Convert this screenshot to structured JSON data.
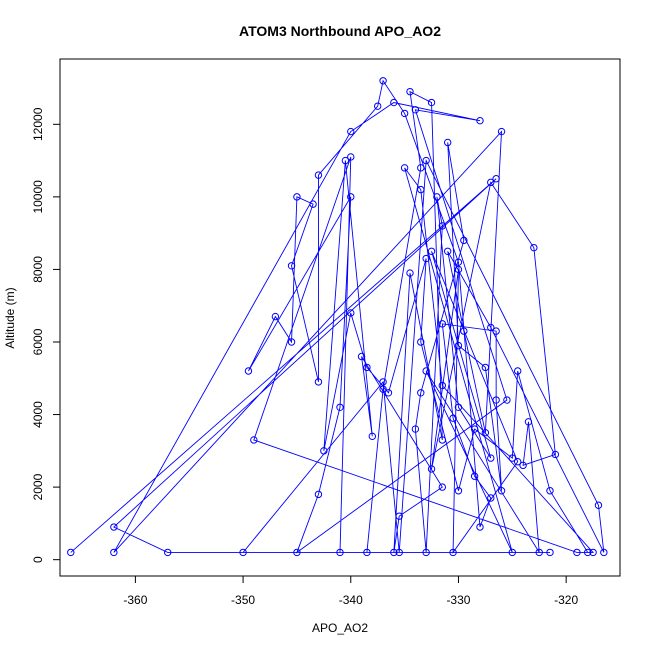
{
  "chart_data": {
    "type": "scatter",
    "title": "ATOM3 Northbound APO_AO2",
    "xlabel": "APO_AO2",
    "ylabel": "Altitude (m)",
    "xlim": [
      -367,
      -315
    ],
    "ylim": [
      -450,
      13800
    ],
    "xticks": [
      -360,
      -350,
      -340,
      -330,
      -320
    ],
    "yticks": [
      0,
      2000,
      4000,
      6000,
      8000,
      10000,
      12000
    ],
    "grid": false,
    "series": [
      {
        "color": "#0000ff",
        "markers": "open-circle",
        "connected": true,
        "points": [
          [
            -366,
            200
          ],
          [
            -326.5,
            10500
          ],
          [
            -362,
            900
          ],
          [
            -357,
            200
          ],
          [
            -321.5,
            200
          ],
          [
            -350,
            200
          ],
          [
            -337,
            4900
          ],
          [
            -335.5,
            200
          ],
          [
            -333,
            11000
          ],
          [
            -317,
            1500
          ],
          [
            -316.5,
            200
          ],
          [
            -327,
            6400
          ],
          [
            -331,
            8500
          ],
          [
            -329.5,
            6300
          ],
          [
            -327.5,
            3500
          ],
          [
            -326,
            11800
          ],
          [
            -362,
            200
          ],
          [
            -340,
            11800
          ],
          [
            -336,
            12600
          ],
          [
            -328,
            12100
          ],
          [
            -334,
            12400
          ],
          [
            -325.5,
            4400
          ],
          [
            -345,
            200
          ],
          [
            -343,
            1800
          ],
          [
            -341,
            4200
          ],
          [
            -340,
            10000
          ],
          [
            -349.5,
            5200
          ],
          [
            -347,
            6700
          ],
          [
            -345.5,
            6000
          ],
          [
            -345,
            10000
          ],
          [
            -343.5,
            9800
          ],
          [
            -345.5,
            8100
          ],
          [
            -343,
            4900
          ],
          [
            -343,
            10600
          ],
          [
            -337.5,
            12500
          ],
          [
            -337,
            13200
          ],
          [
            -335,
            12300
          ],
          [
            -330,
            8200
          ],
          [
            -328,
            900
          ],
          [
            -327,
            1700
          ],
          [
            -328.5,
            2300
          ],
          [
            -330.5,
            3900
          ],
          [
            -331.5,
            6500
          ],
          [
            -326.5,
            6300
          ],
          [
            -326.5,
            4400
          ],
          [
            -326,
            1900
          ],
          [
            -327.5,
            5300
          ],
          [
            -330,
            5900
          ],
          [
            -331,
            11500
          ],
          [
            -329.5,
            8800
          ],
          [
            -333.5,
            4600
          ],
          [
            -334,
            3600
          ],
          [
            -333,
            200
          ],
          [
            -331.5,
            9200
          ],
          [
            -332,
            10000
          ],
          [
            -330,
            4200
          ],
          [
            -327,
            2800
          ],
          [
            -332.5,
            8500
          ],
          [
            -324.5,
            2700
          ],
          [
            -330.5,
            200
          ],
          [
            -330,
            8000
          ],
          [
            -332.5,
            2500
          ],
          [
            -327,
            10400
          ],
          [
            -323,
            8600
          ],
          [
            -321,
            2900
          ],
          [
            -324,
            2600
          ],
          [
            -323.5,
            3800
          ],
          [
            -322.5,
            200
          ],
          [
            -333,
            5200
          ],
          [
            -325,
            200
          ],
          [
            -335,
            10800
          ],
          [
            -333.5,
            10200
          ],
          [
            -331.5,
            4800
          ],
          [
            -317.5,
            200
          ],
          [
            -319,
            200
          ],
          [
            -349,
            3300
          ],
          [
            -340,
            11100
          ],
          [
            -341,
            200
          ],
          [
            -338.5,
            200
          ],
          [
            -337,
            4700
          ],
          [
            -333.5,
            10800
          ],
          [
            -334.5,
            12900
          ],
          [
            -332.5,
            12600
          ],
          [
            -331.5,
            3300
          ],
          [
            -334.5,
            7900
          ],
          [
            -336,
            200
          ],
          [
            -335.5,
            1200
          ],
          [
            -331.5,
            2000
          ],
          [
            -339,
            5600
          ],
          [
            -338,
            3400
          ],
          [
            -340.5,
            11000
          ],
          [
            -342.5,
            3000
          ],
          [
            -340,
            6800
          ],
          [
            -338.5,
            5300
          ],
          [
            -336.5,
            4600
          ],
          [
            -333,
            8300
          ],
          [
            -333.5,
            6000
          ],
          [
            -330,
            1900
          ],
          [
            -328.5,
            3600
          ],
          [
            -325,
            2800
          ],
          [
            -324.5,
            5200
          ],
          [
            -321.5,
            1900
          ],
          [
            -318,
            200
          ]
        ]
      }
    ]
  }
}
